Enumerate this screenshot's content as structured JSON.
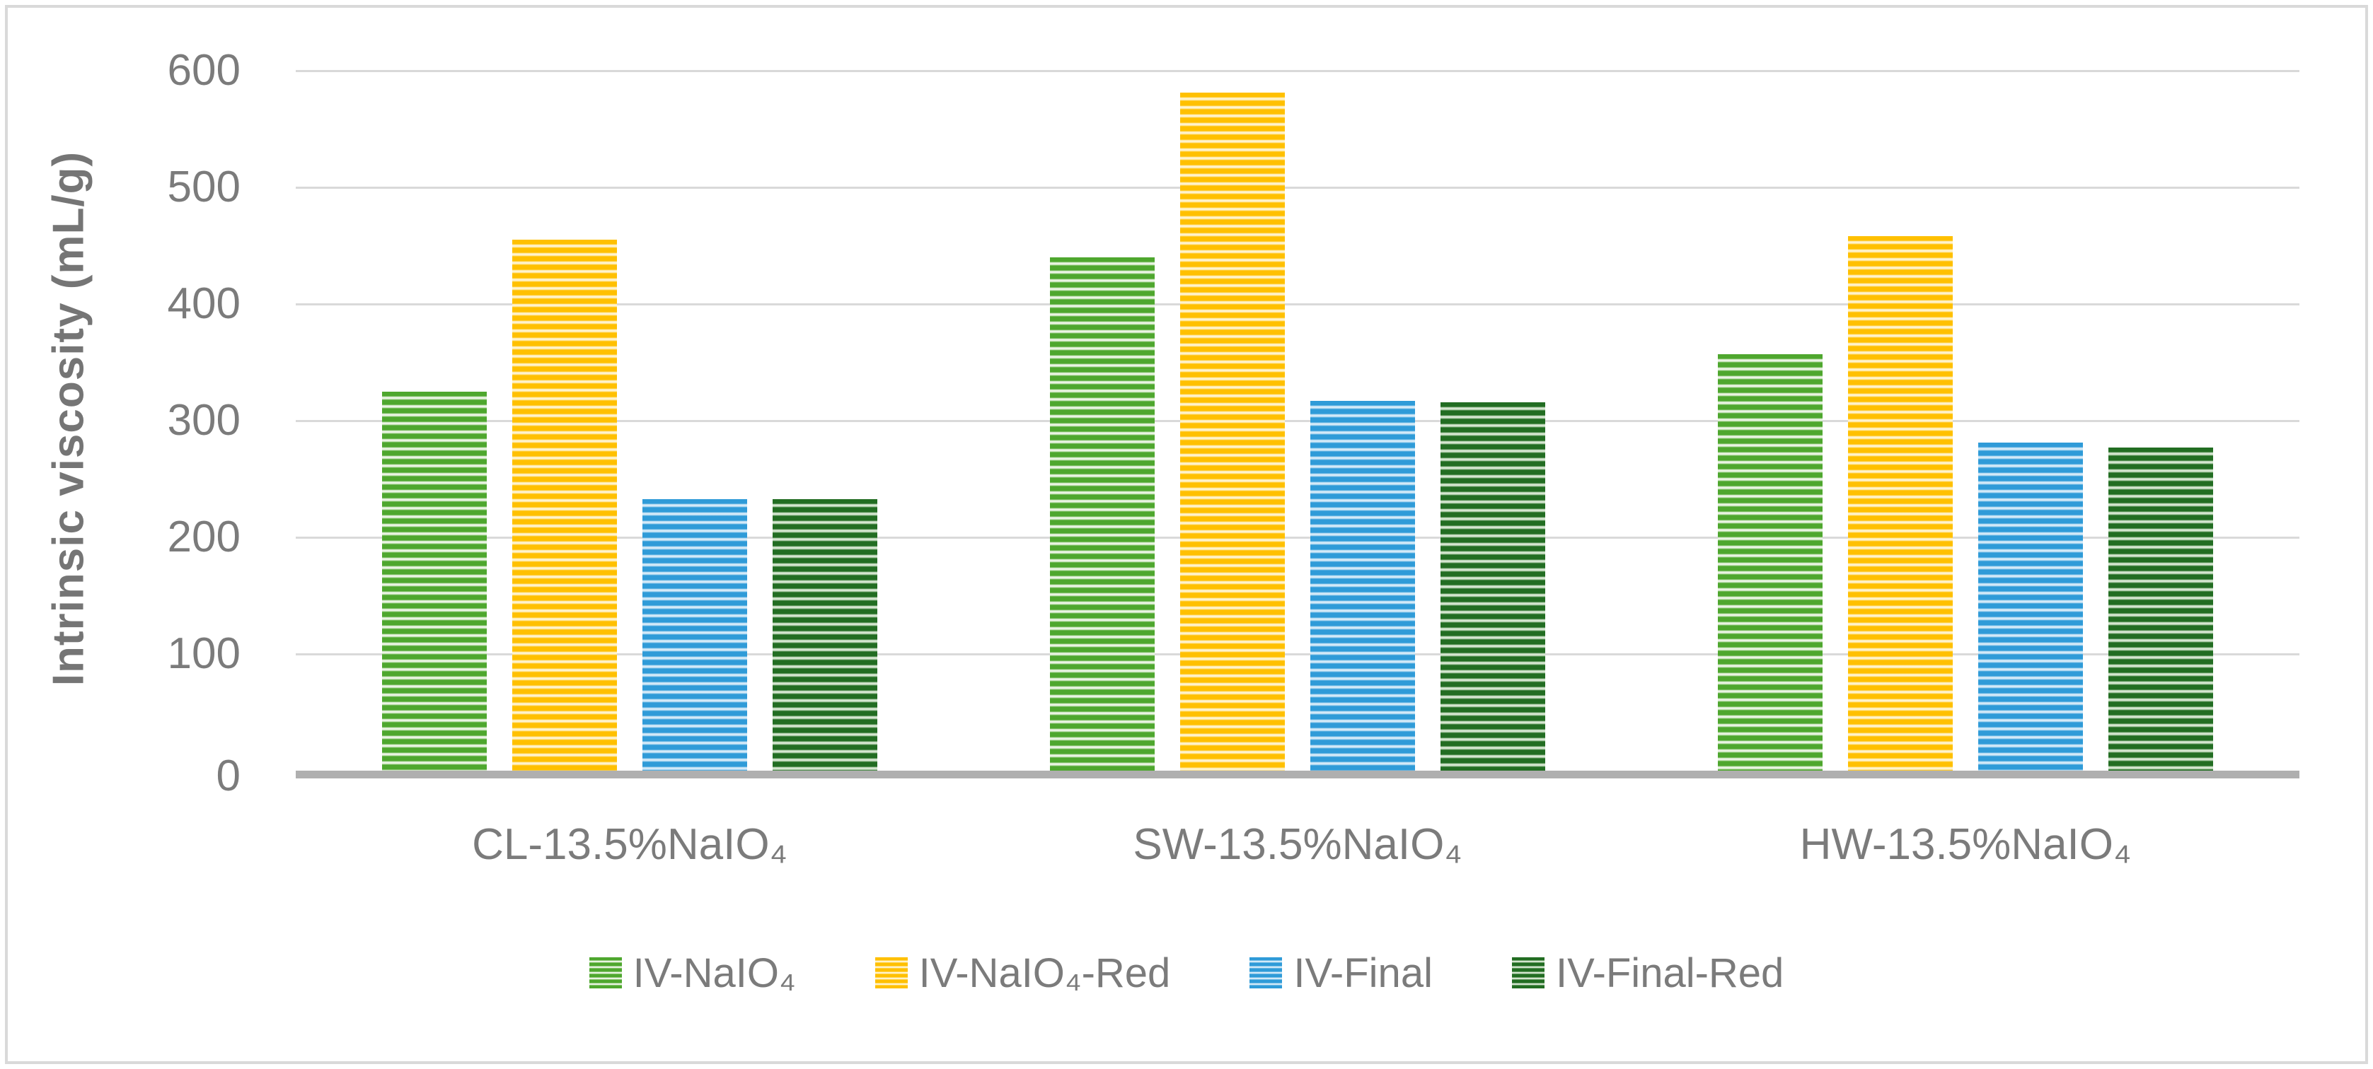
{
  "chart_data": {
    "type": "bar",
    "title": "",
    "xlabel": "",
    "ylabel": "Intrinsic viscosity (mL/g)",
    "ylim": [
      0,
      600
    ],
    "yticks": [
      0,
      100,
      200,
      300,
      400,
      500,
      600
    ],
    "grid": "horizontal gridlines at every y tick",
    "legend_position": "bottom-center",
    "bar_style": "horizontal stripe pattern fill",
    "categories": [
      "CL-13.5%NaIO₄",
      "SW-13.5%NaIO₄",
      "HW-13.5%NaIO₄"
    ],
    "series": [
      {
        "name": "IV-NaIO₄",
        "color": "#4EA72E",
        "stripe_light": "#EAF4E3",
        "values": [
          325,
          440,
          357
        ]
      },
      {
        "name": "IV-NaIO₄-Red",
        "color": "#FFC000",
        "stripe_light": "#FFF3CD",
        "values": [
          455,
          581,
          458
        ]
      },
      {
        "name": "IV-Final",
        "color": "#2F9BD8",
        "stripe_light": "#D4EAF8",
        "values": [
          233,
          317,
          281
        ]
      },
      {
        "name": "IV-Final-Red",
        "color": "#226D22",
        "stripe_light": "#D5E6D0",
        "values": [
          233,
          316,
          277
        ]
      }
    ],
    "colors": {
      "text": "#7B7B7B",
      "axis_title_text": "#757575",
      "gridline": "#D9D9D9",
      "axis_line": "#AFAFAF",
      "border": "#D9D9D9",
      "background": "#FFFFFF"
    }
  }
}
